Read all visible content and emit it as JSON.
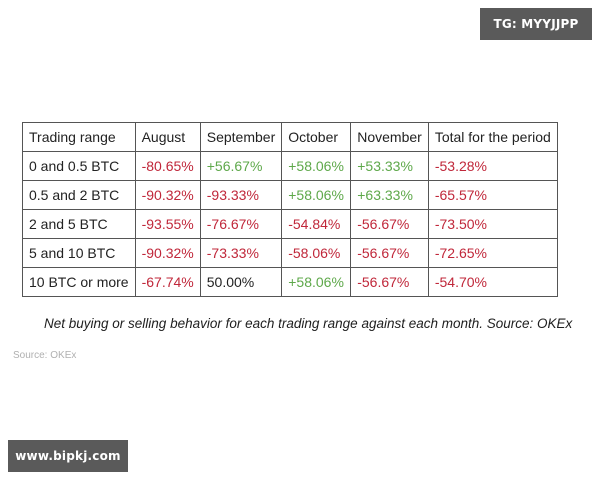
{
  "watermarks": {
    "telegram": "TG: MYYJJPP",
    "website": "www.bipkj.com"
  },
  "table": {
    "headers": [
      "Trading range",
      "August",
      "September",
      "October",
      "November",
      "Total for the period"
    ],
    "rows": [
      {
        "range": "0 and 0.5 BTC",
        "cells": [
          {
            "v": "-80.65%",
            "s": "neg"
          },
          {
            "v": "+56.67%",
            "s": "pos"
          },
          {
            "v": "+58.06%",
            "s": "pos"
          },
          {
            "v": "+53.33%",
            "s": "pos"
          },
          {
            "v": "-53.28%",
            "s": "neg"
          }
        ]
      },
      {
        "range": "0.5 and 2 BTC",
        "cells": [
          {
            "v": "-90.32%",
            "s": "neg"
          },
          {
            "v": "-93.33%",
            "s": "neg"
          },
          {
            "v": "+58.06%",
            "s": "pos"
          },
          {
            "v": "+63.33%",
            "s": "pos"
          },
          {
            "v": "-65.57%",
            "s": "neg"
          }
        ]
      },
      {
        "range": "2 and 5 BTC",
        "cells": [
          {
            "v": "-93.55%",
            "s": "neg"
          },
          {
            "v": "-76.67%",
            "s": "neg"
          },
          {
            "v": "-54.84%",
            "s": "neg"
          },
          {
            "v": "-56.67%",
            "s": "neg"
          },
          {
            "v": "-73.50%",
            "s": "neg"
          }
        ]
      },
      {
        "range": "5 and 10 BTC",
        "cells": [
          {
            "v": "-90.32%",
            "s": "neg"
          },
          {
            "v": "-73.33%",
            "s": "neg"
          },
          {
            "v": "-58.06%",
            "s": "neg"
          },
          {
            "v": "-56.67%",
            "s": "neg"
          },
          {
            "v": "-72.65%",
            "s": "neg"
          }
        ]
      },
      {
        "range": "10 BTC or more",
        "cells": [
          {
            "v": "-67.74%",
            "s": "neg"
          },
          {
            "v": "50.00%",
            "s": "neu"
          },
          {
            "v": "+58.06%",
            "s": "pos"
          },
          {
            "v": "-56.67%",
            "s": "neg"
          },
          {
            "v": "-54.70%",
            "s": "neg"
          }
        ]
      }
    ]
  },
  "colors": {
    "negative": "#c0273a",
    "positive": "#5ea84a",
    "neutral": "#222222",
    "badge_bg": "#5a5a5a"
  },
  "caption": "Net buying or selling behavior for each trading range against each month. Source: OKEx",
  "source_note": "Source: OKEx"
}
